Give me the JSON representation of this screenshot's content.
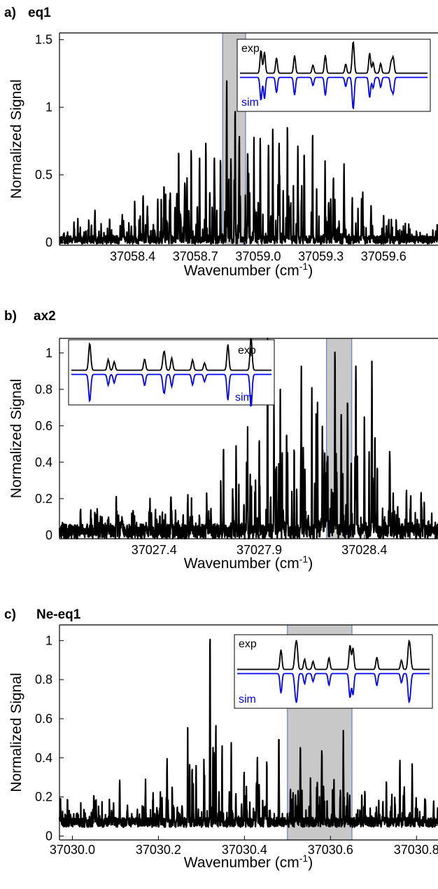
{
  "chart_data": [
    {
      "type": "line",
      "panel_label": "a)",
      "title": "eq1",
      "xlabel": "Wavenumber (cm",
      "xlabel_sup": "-1",
      "xlabel_close": ")",
      "ylabel": "Normalized Signal",
      "xlim": [
        37058.05,
        37059.86
      ],
      "ylim": [
        -0.02,
        1.55
      ],
      "xticks": [
        37058.4,
        37058.7,
        37059.0,
        37059.3,
        37059.6
      ],
      "xtick_labels": [
        "37058.4",
        "37058.7",
        "37059.0",
        "37059.3",
        "37059.6"
      ],
      "yticks": [
        0,
        0.5,
        1,
        1.5
      ],
      "ytick_labels": [
        "0",
        "0.5",
        "1",
        "1.5"
      ],
      "highlight_region": [
        37058.83,
        37058.94
      ],
      "inset": {
        "legend": [
          "exp",
          "sim"
        ],
        "colors": [
          "#000000",
          "#0000ff"
        ],
        "position": "top-right"
      },
      "peaks": [
        {
          "x": 37058.12,
          "y": 0.08
        },
        {
          "x": 37058.19,
          "y": 0.12
        },
        {
          "x": 37058.22,
          "y": 0.2
        },
        {
          "x": 37058.29,
          "y": 0.15
        },
        {
          "x": 37058.35,
          "y": 0.18
        },
        {
          "x": 37058.41,
          "y": 0.22
        },
        {
          "x": 37058.45,
          "y": 0.35
        },
        {
          "x": 37058.47,
          "y": 0.25
        },
        {
          "x": 37058.52,
          "y": 0.3
        },
        {
          "x": 37058.55,
          "y": 0.42
        },
        {
          "x": 37058.58,
          "y": 0.35
        },
        {
          "x": 37058.62,
          "y": 0.58
        },
        {
          "x": 37058.66,
          "y": 0.45
        },
        {
          "x": 37058.68,
          "y": 0.66
        },
        {
          "x": 37058.72,
          "y": 0.56
        },
        {
          "x": 37058.75,
          "y": 0.72
        },
        {
          "x": 37058.79,
          "y": 0.5
        },
        {
          "x": 37058.82,
          "y": 0.6
        },
        {
          "x": 37058.85,
          "y": 0.76
        },
        {
          "x": 37058.87,
          "y": 0.58
        },
        {
          "x": 37058.89,
          "y": 1.0
        },
        {
          "x": 37058.91,
          "y": 0.75
        },
        {
          "x": 37058.95,
          "y": 0.68
        },
        {
          "x": 37058.98,
          "y": 0.75
        },
        {
          "x": 37059.01,
          "y": 0.77
        },
        {
          "x": 37059.05,
          "y": 0.6
        },
        {
          "x": 37059.07,
          "y": 0.84
        },
        {
          "x": 37059.1,
          "y": 0.74
        },
        {
          "x": 37059.14,
          "y": 0.68
        },
        {
          "x": 37059.19,
          "y": 0.7
        },
        {
          "x": 37059.22,
          "y": 0.62
        },
        {
          "x": 37059.26,
          "y": 0.58
        },
        {
          "x": 37059.32,
          "y": 0.5
        },
        {
          "x": 37059.36,
          "y": 0.46
        },
        {
          "x": 37059.41,
          "y": 0.4
        },
        {
          "x": 37059.45,
          "y": 0.3
        },
        {
          "x": 37059.5,
          "y": 0.25
        },
        {
          "x": 37059.54,
          "y": 0.28
        },
        {
          "x": 37059.6,
          "y": 0.2
        },
        {
          "x": 37059.66,
          "y": 0.14
        },
        {
          "x": 37059.72,
          "y": 0.1
        }
      ],
      "noise_level": 0.03
    },
    {
      "type": "line",
      "panel_label": "b)",
      "title": "ax2",
      "xlabel": "Wavenumber (cm",
      "xlabel_sup": "-1",
      "xlabel_close": ")",
      "ylabel": "Normalized Signal",
      "xlim": [
        37026.95,
        37028.75
      ],
      "ylim": [
        -0.02,
        1.08
      ],
      "xticks": [
        37027.4,
        37027.9,
        37028.4
      ],
      "xtick_labels": [
        "37027.4",
        "37027.9",
        "37028.4"
      ],
      "yticks": [
        0,
        0.2,
        0.4,
        0.6,
        0.8,
        1
      ],
      "ytick_labels": [
        "0",
        "0.2",
        "0.4",
        "0.6",
        "0.8",
        "1"
      ],
      "highlight_region": [
        37028.22,
        37028.34
      ],
      "inset": {
        "legend": [
          "exp",
          "sim"
        ],
        "colors": [
          "#000000",
          "#0000ff"
        ],
        "position": "top-left"
      },
      "peaks": [
        {
          "x": 37027.05,
          "y": 0.08
        },
        {
          "x": 37027.13,
          "y": 0.12
        },
        {
          "x": 37027.22,
          "y": 0.17
        },
        {
          "x": 37027.3,
          "y": 0.15
        },
        {
          "x": 37027.38,
          "y": 0.16
        },
        {
          "x": 37027.48,
          "y": 0.22
        },
        {
          "x": 37027.56,
          "y": 0.19
        },
        {
          "x": 37027.65,
          "y": 0.2
        },
        {
          "x": 37027.73,
          "y": 0.47
        },
        {
          "x": 37027.79,
          "y": 0.38
        },
        {
          "x": 37027.84,
          "y": 0.4
        },
        {
          "x": 37027.9,
          "y": 0.5
        },
        {
          "x": 37027.94,
          "y": 0.58
        },
        {
          "x": 37027.97,
          "y": 0.68
        },
        {
          "x": 37028.0,
          "y": 0.77
        },
        {
          "x": 37028.03,
          "y": 0.55
        },
        {
          "x": 37028.1,
          "y": 0.88
        },
        {
          "x": 37028.15,
          "y": 0.47
        },
        {
          "x": 37028.2,
          "y": 0.55
        },
        {
          "x": 37028.26,
          "y": 1.0
        },
        {
          "x": 37028.29,
          "y": 0.68
        },
        {
          "x": 37028.32,
          "y": 0.75
        },
        {
          "x": 37028.36,
          "y": 0.8
        },
        {
          "x": 37028.4,
          "y": 0.63
        },
        {
          "x": 37028.45,
          "y": 0.55
        },
        {
          "x": 37028.52,
          "y": 0.35
        },
        {
          "x": 37028.6,
          "y": 0.25
        },
        {
          "x": 37028.67,
          "y": 0.18
        },
        {
          "x": 37028.72,
          "y": 0.1
        }
      ],
      "noise_level": 0.04
    },
    {
      "type": "line",
      "panel_label": "c)",
      "title": "Ne-eq1",
      "xlabel": "Wavenumber (cm",
      "xlabel_sup": "-1",
      "xlabel_close": ")",
      "ylabel": "Normalized Signal",
      "xlim": [
        37029.97,
        37030.85
      ],
      "ylim": [
        -0.02,
        1.08
      ],
      "xticks": [
        37030.0,
        37030.2,
        37030.4,
        37030.6,
        37030.8
      ],
      "xtick_labels": [
        "37030.0",
        "37030.2",
        "37030.4",
        "37030.6",
        "37030.8"
      ],
      "yticks": [
        0,
        0.2,
        0.4,
        0.6,
        0.8,
        1
      ],
      "ytick_labels": [
        "0",
        "0.2",
        "0.4",
        "0.6",
        "0.8",
        "1"
      ],
      "highlight_region": [
        37030.5,
        37030.65
      ],
      "inset": {
        "legend": [
          "exp",
          "sim"
        ],
        "colors": [
          "#000000",
          "#0000ff"
        ],
        "position": "top-right"
      },
      "baseline": 0.07,
      "peaks": [
        {
          "x": 37030.05,
          "y": 0.14
        },
        {
          "x": 37030.11,
          "y": 0.2
        },
        {
          "x": 37030.17,
          "y": 0.2
        },
        {
          "x": 37030.22,
          "y": 0.23
        },
        {
          "x": 37030.27,
          "y": 0.15
        },
        {
          "x": 37030.32,
          "y": 1.0
        },
        {
          "x": 37030.33,
          "y": 0.35
        },
        {
          "x": 37030.38,
          "y": 0.15
        },
        {
          "x": 37030.43,
          "y": 0.35
        },
        {
          "x": 37030.48,
          "y": 0.44
        },
        {
          "x": 37030.53,
          "y": 0.42
        },
        {
          "x": 37030.58,
          "y": 0.36
        },
        {
          "x": 37030.63,
          "y": 0.32
        },
        {
          "x": 37030.68,
          "y": 0.18
        },
        {
          "x": 37030.73,
          "y": 0.2
        },
        {
          "x": 37030.79,
          "y": 0.28
        },
        {
          "x": 37030.84,
          "y": 0.12
        }
      ],
      "noise_level": 0.025
    }
  ]
}
